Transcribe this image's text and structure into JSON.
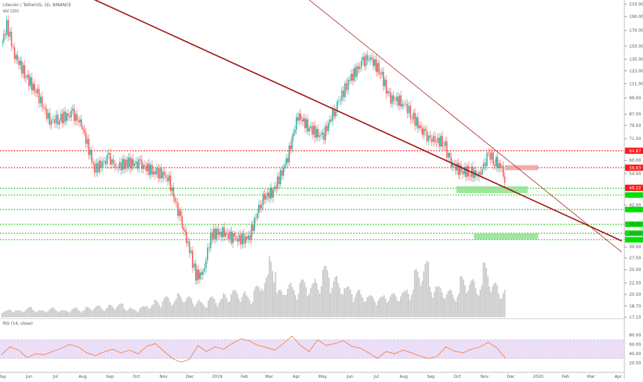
{
  "header": {
    "title": "Litecoin / TetherUS, 1D, BINANCE",
    "volume_label": "Vol (20)",
    "rsi_label": "RSI (14, close)"
  },
  "colors": {
    "background": "#ffffff",
    "candle_up": "#26a69a",
    "candle_down": "#ef5350",
    "volume": "#c8c8c8",
    "trendline": "#a31515",
    "resistance": "#ff1a1a",
    "support": "#22cc22",
    "rsi_line": "#f57c3a",
    "rsi_band": "#e6d6f5",
    "grid": "#eeeeee"
  },
  "chart_data": [
    {
      "type": "candlestick",
      "symbol": "Litecoin / TetherUS",
      "interval": "1D",
      "exchange": "BINANCE",
      "scale": "log",
      "ylim": [
        17.1,
        217
      ],
      "y_ticks": [
        "210.00",
        "190.00",
        "170.00",
        "150.00",
        "135.00",
        "123.00",
        "111.00",
        "99.00",
        "87.00",
        "79.50",
        "71.50",
        "64.00",
        "60.00",
        "54.00",
        "48.00",
        "42.00",
        "36.00",
        "33.50",
        "30.00",
        "27.50",
        "25.00",
        "22.50",
        "20.50",
        "18.70",
        "17.10"
      ],
      "x_ticks": [
        "May",
        "Jun",
        "Jul",
        "Aug",
        "Sep",
        "Oct",
        "Nov",
        "Dec",
        "2019",
        "Feb",
        "Mar",
        "Apr",
        "May",
        "Jun",
        "Jul",
        "Aug",
        "Sep",
        "Oct",
        "Nov",
        "Dec",
        "2020",
        "Feb",
        "Mar",
        "Apr"
      ],
      "close_series": [
        {
          "date": "2018-05-01",
          "close": 155
        },
        {
          "date": "2018-05-06",
          "close": 178
        },
        {
          "date": "2018-05-15",
          "close": 140
        },
        {
          "date": "2018-05-28",
          "close": 118
        },
        {
          "date": "2018-06-10",
          "close": 102
        },
        {
          "date": "2018-06-24",
          "close": 82
        },
        {
          "date": "2018-07-05",
          "close": 84
        },
        {
          "date": "2018-07-20",
          "close": 87
        },
        {
          "date": "2018-07-30",
          "close": 80
        },
        {
          "date": "2018-08-14",
          "close": 56
        },
        {
          "date": "2018-08-30",
          "close": 61
        },
        {
          "date": "2018-09-08",
          "close": 57
        },
        {
          "date": "2018-09-20",
          "close": 59
        },
        {
          "date": "2018-10-05",
          "close": 58
        },
        {
          "date": "2018-10-20",
          "close": 55
        },
        {
          "date": "2018-11-05",
          "close": 53
        },
        {
          "date": "2018-11-20",
          "close": 37
        },
        {
          "date": "2018-11-28",
          "close": 31
        },
        {
          "date": "2018-12-07",
          "close": 24
        },
        {
          "date": "2018-12-15",
          "close": 24
        },
        {
          "date": "2018-12-24",
          "close": 33
        },
        {
          "date": "2019-01-05",
          "close": 34
        },
        {
          "date": "2019-01-20",
          "close": 32
        },
        {
          "date": "2019-02-05",
          "close": 32
        },
        {
          "date": "2019-02-20",
          "close": 44
        },
        {
          "date": "2019-03-05",
          "close": 47
        },
        {
          "date": "2019-03-20",
          "close": 59
        },
        {
          "date": "2019-04-02",
          "close": 86
        },
        {
          "date": "2019-04-15",
          "close": 78
        },
        {
          "date": "2019-04-30",
          "close": 72
        },
        {
          "date": "2019-05-15",
          "close": 92
        },
        {
          "date": "2019-05-31",
          "close": 115
        },
        {
          "date": "2019-06-15",
          "close": 132
        },
        {
          "date": "2019-06-22",
          "close": 138
        },
        {
          "date": "2019-07-05",
          "close": 122
        },
        {
          "date": "2019-07-15",
          "close": 99
        },
        {
          "date": "2019-07-30",
          "close": 96
        },
        {
          "date": "2019-08-10",
          "close": 86
        },
        {
          "date": "2019-08-25",
          "close": 73
        },
        {
          "date": "2019-09-05",
          "close": 70
        },
        {
          "date": "2019-09-15",
          "close": 70
        },
        {
          "date": "2019-09-22",
          "close": 59
        },
        {
          "date": "2019-10-05",
          "close": 55
        },
        {
          "date": "2019-10-15",
          "close": 55
        },
        {
          "date": "2019-10-25",
          "close": 53
        },
        {
          "date": "2019-11-05",
          "close": 63
        },
        {
          "date": "2019-11-12",
          "close": 60
        },
        {
          "date": "2019-11-20",
          "close": 56
        },
        {
          "date": "2019-11-25",
          "close": 48.22
        }
      ],
      "price_labels": [
        {
          "value": 64.87,
          "text": "64.87",
          "color": "#ff1a1a"
        },
        {
          "value": 56.63,
          "text": "56.63",
          "color": "#ff1a1a"
        },
        {
          "value": 48.22,
          "text": "48.22",
          "color": "#ff1a1a"
        }
      ],
      "resistance_levels": [
        64.87,
        56.63
      ],
      "support_levels": [
        48.0,
        45.5,
        40.5,
        36.0,
        33.5,
        31.8
      ],
      "trendlines": [
        {
          "from": {
            "date": "2018-07-15",
            "price": 240
          },
          "to": {
            "date": "2020-04-05",
            "price": 31.5
          },
          "weight": "thick"
        },
        {
          "from": {
            "date": "2019-03-15",
            "price": 260
          },
          "to": {
            "date": "2020-04-05",
            "price": 28.8
          },
          "weight": "thin"
        }
      ],
      "zones": [
        {
          "from": "2019-11-24",
          "to": "2020-01-01",
          "low": 55.5,
          "high": 57.8,
          "color": "#f5a0a0"
        },
        {
          "from": "2019-09-30",
          "to": "2019-12-20",
          "low": 46.2,
          "high": 48.8,
          "color": "#8fe08f"
        },
        {
          "from": "2019-10-20",
          "to": "2020-01-01",
          "low": 31.8,
          "high": 33.4,
          "color": "#8fe08f"
        }
      ]
    },
    {
      "type": "bar",
      "name": "Vol (20)",
      "volume_level": [
        0.1,
        0.12,
        0.1,
        0.15,
        0.12,
        0.1,
        0.14,
        0.12,
        0.1,
        0.14,
        0.12,
        0.15,
        0.17,
        0.15,
        0.18,
        0.2,
        0.15,
        0.12,
        0.16,
        0.2,
        0.25,
        0.3,
        0.28,
        0.35,
        0.3,
        0.26,
        0.22,
        0.3,
        0.28,
        0.35,
        0.4,
        0.38,
        0.32,
        0.46,
        0.62,
        0.9,
        0.4,
        0.5,
        0.45,
        0.55,
        0.5,
        0.58,
        0.75,
        0.6,
        0.52,
        0.45,
        0.4,
        0.35,
        0.32,
        0.3,
        0.35,
        0.35,
        0.38,
        0.45,
        0.7,
        0.82,
        0.5,
        0.45,
        0.4,
        0.38,
        0.6,
        0.55,
        0.5,
        0.8,
        0.5,
        0.42
      ]
    },
    {
      "type": "line",
      "name": "RSI (14, close)",
      "ylim": [
        15,
        95
      ],
      "y_ticks": [
        "80.00",
        "60.00",
        "40.00",
        "20.00"
      ],
      "band": [
        30,
        70
      ],
      "values": [
        38,
        55,
        48,
        32,
        40,
        38,
        45,
        52,
        60,
        55,
        42,
        36,
        44,
        50,
        42,
        48,
        40,
        56,
        62,
        46,
        30,
        22,
        28,
        58,
        45,
        55,
        50,
        62,
        72,
        68,
        58,
        54,
        48,
        62,
        78,
        58,
        45,
        70,
        58,
        62,
        68,
        56,
        52,
        42,
        30,
        45,
        40,
        48,
        42,
        35,
        30,
        35,
        55,
        46,
        42,
        50,
        55,
        65,
        52,
        30
      ]
    }
  ]
}
